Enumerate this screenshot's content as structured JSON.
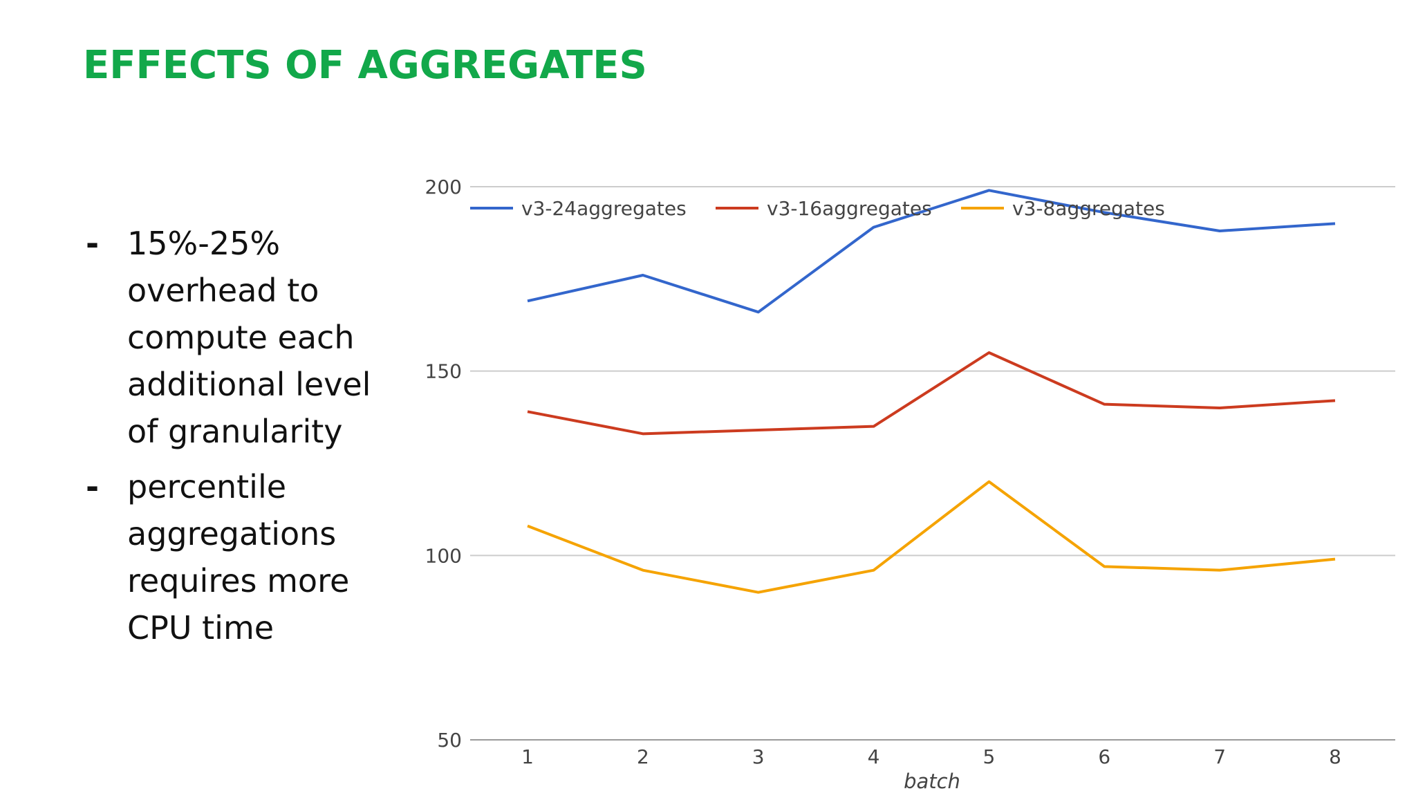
{
  "slide": {
    "title": "EFFECTS OF AGGREGATES",
    "title_color": "#12a84a",
    "bullets": [
      "15%-25% overhead to compute each additional level of granularity",
      "percentile aggregations requires more CPU time"
    ]
  },
  "chart_data": {
    "type": "line",
    "title": "",
    "xlabel": "batch",
    "ylabel": "",
    "x": [
      1,
      2,
      3,
      4,
      5,
      6,
      7,
      8
    ],
    "ylim": [
      50,
      200
    ],
    "yticks": [
      50,
      100,
      150,
      200
    ],
    "grid": true,
    "legend": "top",
    "series": [
      {
        "name": "v3-24aggregates",
        "color": "#3366cc",
        "values": [
          169,
          176,
          166,
          189,
          199,
          193,
          188,
          190
        ]
      },
      {
        "name": "v3-16aggregates",
        "color": "#cc3b1f",
        "values": [
          139,
          133,
          134,
          135,
          155,
          141,
          140,
          142
        ]
      },
      {
        "name": "v3-8aggregates",
        "color": "#f5a300",
        "values": [
          108,
          96,
          90,
          96,
          120,
          97,
          96,
          99
        ]
      }
    ]
  }
}
